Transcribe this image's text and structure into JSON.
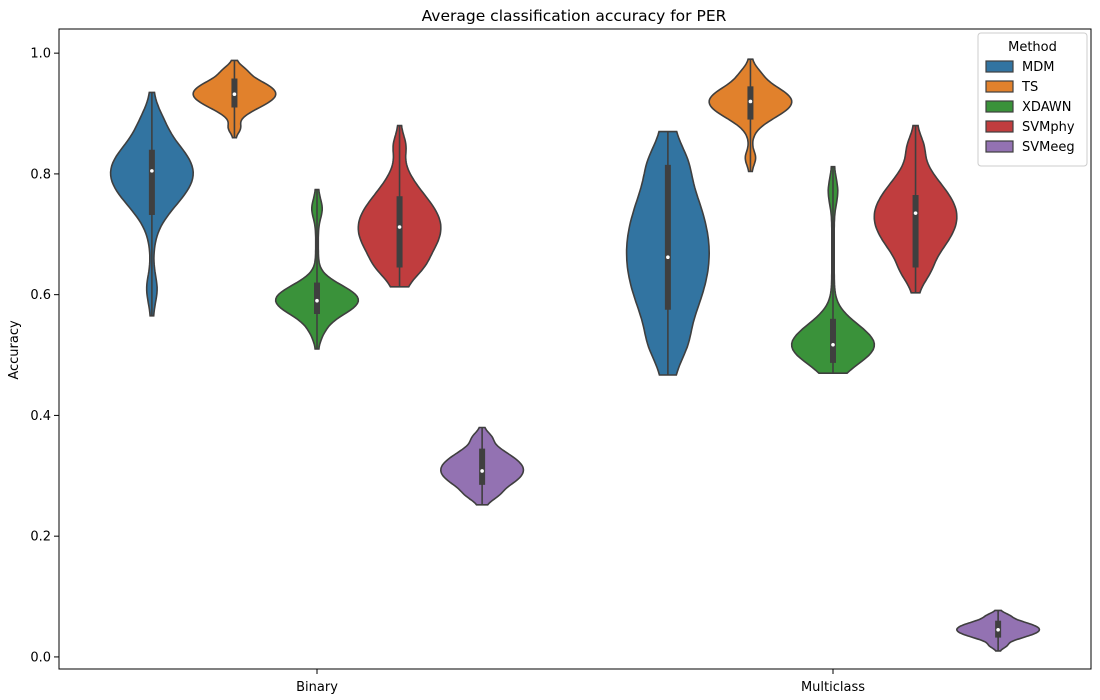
{
  "chart_data": {
    "type": "violin",
    "title": "Average classification accuracy for PER",
    "xlabel": "",
    "ylabel": "Accuracy",
    "categories": [
      "Binary",
      "Multiclass"
    ],
    "ylim": [
      -0.02,
      1.04
    ],
    "yticks": [
      "0.0",
      "0.2",
      "0.4",
      "0.6",
      "0.8",
      "1.0"
    ],
    "grid": false,
    "legend": {
      "title": "Method",
      "placement": "top-right"
    },
    "series": [
      {
        "name": "MDM",
        "color": "#3274a1",
        "stats": [
          {
            "category": "Binary",
            "min": 0.565,
            "max": 0.935,
            "q1": 0.732,
            "median": 0.805,
            "q3": 0.84
          },
          {
            "category": "Multiclass",
            "min": 0.467,
            "max": 0.87,
            "q1": 0.575,
            "median": 0.662,
            "q3": 0.815
          }
        ]
      },
      {
        "name": "TS",
        "color": "#e1812c",
        "stats": [
          {
            "category": "Binary",
            "min": 0.86,
            "max": 0.988,
            "q1": 0.91,
            "median": 0.932,
            "q3": 0.958
          },
          {
            "category": "Multiclass",
            "min": 0.804,
            "max": 0.99,
            "q1": 0.89,
            "median": 0.92,
            "q3": 0.945
          }
        ]
      },
      {
        "name": "XDAWN",
        "color": "#3a923a",
        "stats": [
          {
            "category": "Binary",
            "min": 0.51,
            "max": 0.774,
            "q1": 0.568,
            "median": 0.59,
            "q3": 0.62
          },
          {
            "category": "Multiclass",
            "min": 0.47,
            "max": 0.812,
            "q1": 0.487,
            "median": 0.517,
            "q3": 0.56
          }
        ]
      },
      {
        "name": "SVMphy",
        "color": "#c03d3e",
        "stats": [
          {
            "category": "Binary",
            "min": 0.613,
            "max": 0.88,
            "q1": 0.645,
            "median": 0.712,
            "q3": 0.763
          },
          {
            "category": "Multiclass",
            "min": 0.603,
            "max": 0.88,
            "q1": 0.645,
            "median": 0.735,
            "q3": 0.765
          }
        ]
      },
      {
        "name": "SVMeeg",
        "color": "#9372b2",
        "stats": [
          {
            "category": "Binary",
            "min": 0.252,
            "max": 0.38,
            "q1": 0.285,
            "median": 0.308,
            "q3": 0.345
          },
          {
            "category": "Multiclass",
            "min": 0.01,
            "max": 0.077,
            "q1": 0.032,
            "median": 0.045,
            "q3": 0.06
          }
        ]
      }
    ]
  }
}
